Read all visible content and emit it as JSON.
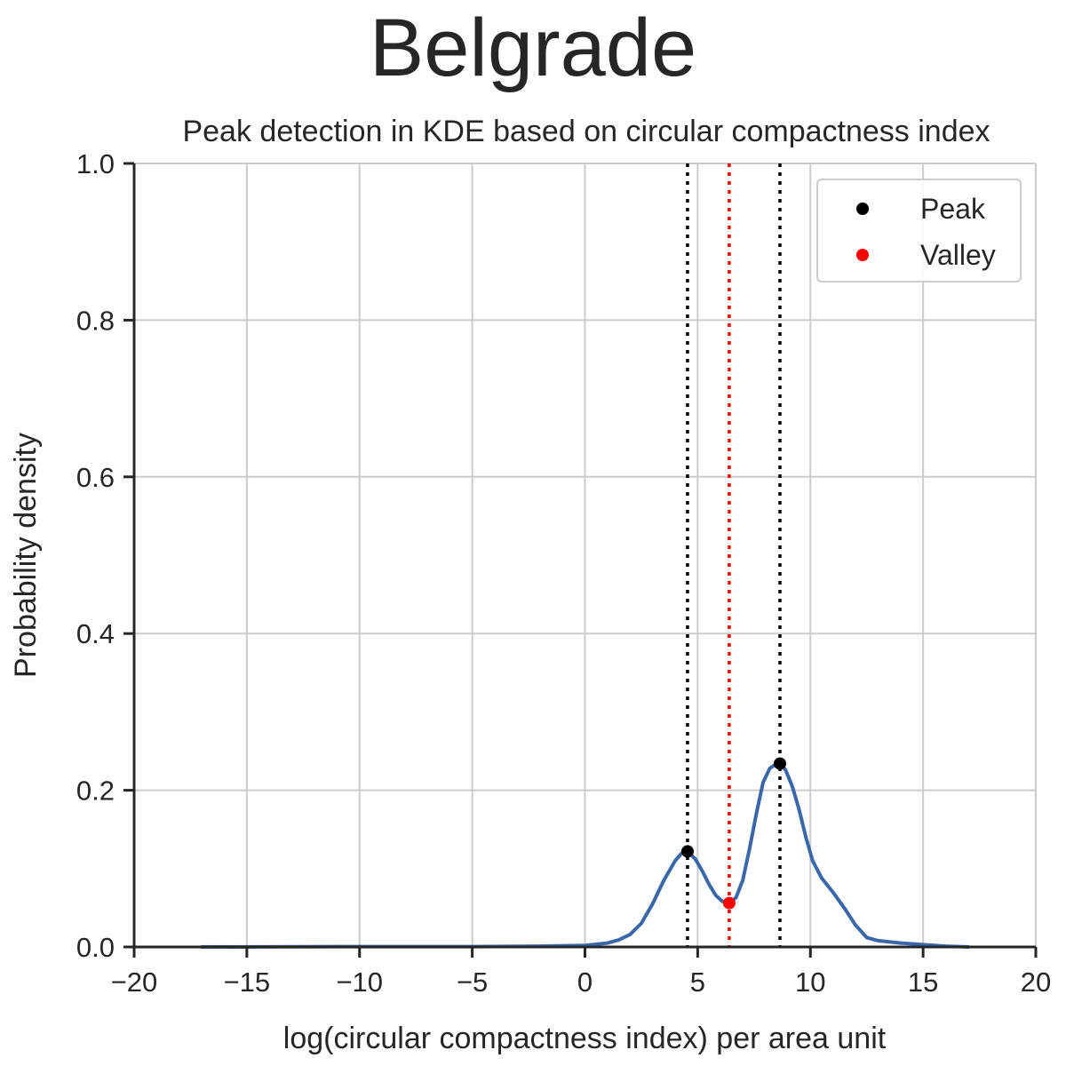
{
  "suptitle": "Belgrade",
  "chart_data": {
    "type": "line",
    "title": "Peak detection in KDE based on circular compactness index",
    "xlabel": "log(circular compactness index) per area unit",
    "ylabel": "Probability density",
    "xlim": [
      -20,
      20
    ],
    "ylim": [
      0,
      1.0
    ],
    "xticks": [
      -20,
      -15,
      -10,
      -5,
      0,
      5,
      10,
      15,
      20
    ],
    "xtick_labels": [
      "−20",
      "−15",
      "−10",
      "−5",
      "0",
      "5",
      "10",
      "15",
      "20"
    ],
    "yticks": [
      0.0,
      0.2,
      0.4,
      0.6,
      0.8,
      1.0
    ],
    "ytick_labels": [
      "0.0",
      "0.2",
      "0.4",
      "0.6",
      "0.8",
      "1.0"
    ],
    "grid": true,
    "series": [
      {
        "color": "#3a67a8",
        "x": [
          -17,
          -10,
          -5,
          -2,
          0,
          1,
          1.5,
          2,
          2.5,
          3,
          3.5,
          4,
          4.3,
          4.6,
          4.9,
          5.2,
          5.5,
          5.8,
          6.1,
          6.4,
          6.7,
          7.0,
          7.3,
          7.6,
          7.9,
          8.2,
          8.5,
          8.7,
          8.9,
          9.2,
          9.5,
          9.8,
          10.1,
          10.5,
          11.0,
          11.5,
          12.0,
          12.5,
          13.0,
          14.0,
          15.0,
          16.0,
          17.0
        ],
        "y": [
          0.0,
          0.0005,
          0.0005,
          0.001,
          0.002,
          0.005,
          0.009,
          0.016,
          0.03,
          0.055,
          0.085,
          0.11,
          0.12,
          0.121,
          0.112,
          0.097,
          0.08,
          0.066,
          0.058,
          0.056,
          0.063,
          0.085,
          0.125,
          0.17,
          0.21,
          0.228,
          0.234,
          0.233,
          0.226,
          0.205,
          0.175,
          0.14,
          0.11,
          0.088,
          0.07,
          0.05,
          0.028,
          0.012,
          0.008,
          0.005,
          0.003,
          0.001,
          0.0
        ]
      }
    ],
    "peaks": [
      {
        "x": 4.55,
        "y": 0.122
      },
      {
        "x": 8.65,
        "y": 0.234
      }
    ],
    "valleys": [
      {
        "x": 6.4,
        "y": 0.056
      }
    ],
    "peak_color": "#000000",
    "valley_color": "#ff0000",
    "legend": {
      "position": "top-right",
      "entries": [
        {
          "label": "Peak",
          "color": "#000000"
        },
        {
          "label": "Valley",
          "color": "#ff0000"
        }
      ]
    }
  }
}
